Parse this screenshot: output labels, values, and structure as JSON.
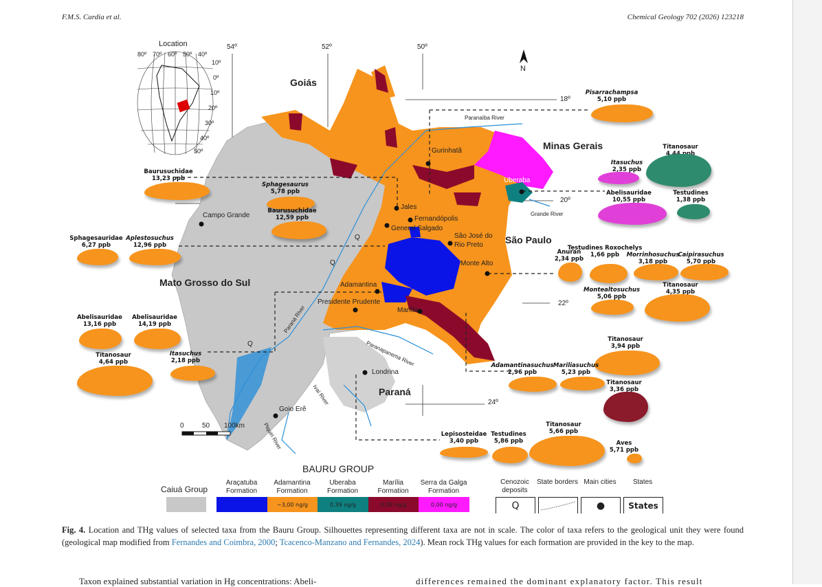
{
  "header": {
    "left": "F.M.S. Cardia et al.",
    "right": "Chemical Geology 702 (2026) 123218"
  },
  "inset": {
    "title": "Location",
    "lon_ticks": [
      "80º",
      "70º",
      "60º",
      "50º",
      "40º"
    ],
    "lat_ticks": [
      "10º",
      "0º",
      "10º",
      "20º",
      "30º",
      "40º",
      "50º"
    ]
  },
  "map": {
    "longitudes": [
      "54º",
      "52º",
      "50º"
    ],
    "latitudes": [
      "18º",
      "20º",
      "22º",
      "24º"
    ],
    "north": "N",
    "states": [
      "Goiás",
      "Minas Gerais",
      "São Paulo",
      "Mato Grosso do Sul",
      "Paraná"
    ],
    "cities": [
      "Gurinhatã",
      "Uberaba",
      "Jales",
      "Fernandópolis",
      "General Salgado",
      "São José do Rio Preto",
      "Monte Alto",
      "Adamantina",
      "Presidente Prudente",
      "Marília",
      "Londrina",
      "Campo Grande",
      "Goio Erê"
    ],
    "rivers": [
      "Paranaíba River",
      "Grande River",
      "Paraná River",
      "Paranapanema River",
      "Ivaí River",
      "Piquiri River"
    ],
    "q_marks": [
      "Q",
      "Q",
      "Q"
    ],
    "scale": {
      "labels": [
        "0",
        "50",
        "100km"
      ]
    }
  },
  "taxa": [
    {
      "name": "Pisarrachampsa",
      "value": "5,10 ppb",
      "italic": true,
      "color": "#f7941d"
    },
    {
      "name": "Titanosaur",
      "value": "4,44 ppb",
      "italic": false,
      "color": "#2e8b6e"
    },
    {
      "name": "Itasuchus",
      "value": "2,35  ppb",
      "italic": true,
      "color": "#e040d8"
    },
    {
      "name": "Abelisauridae",
      "value": "10,55 ppb",
      "italic": false,
      "color": "#e040d8"
    },
    {
      "name": "Testudines",
      "value": "1,38 ppb",
      "italic": false,
      "color": "#2e8b6e"
    },
    {
      "name": "Anuran",
      "value": "2,34 ppb",
      "italic": false,
      "color": "#f7941d"
    },
    {
      "name": "Testudines Roxochelys",
      "value": "1,66 ppb",
      "italic": false,
      "color": "#f7941d"
    },
    {
      "name": "Morrinhosuchus",
      "value": "3,18 ppb",
      "italic": true,
      "color": "#f7941d"
    },
    {
      "name": "Caipirasuchus",
      "value": "5,70 ppb",
      "italic": true,
      "color": "#f7941d"
    },
    {
      "name": "Montealtosuchus",
      "value": "5,06 ppb",
      "italic": true,
      "color": "#f7941d"
    },
    {
      "name": "Titanosaur",
      "value": "4,35 ppb",
      "italic": false,
      "color": "#f7941d"
    },
    {
      "name": "Titanosaur",
      "value": "3,94 ppb",
      "italic": false,
      "color": "#f7941d"
    },
    {
      "name": "Adamantinasuchus",
      "value": "2,96 ppb",
      "italic": true,
      "color": "#f7941d"
    },
    {
      "name": "Mariliasuchus",
      "value": "5,23 ppb",
      "italic": true,
      "color": "#f7941d"
    },
    {
      "name": "Titanosaur",
      "value": "3,36 ppb",
      "italic": false,
      "color": "#8b1a2b"
    },
    {
      "name": "Lepisosteidae",
      "value": "3,40 ppb",
      "italic": false,
      "color": "#f7941d"
    },
    {
      "name": "Testudines",
      "value": "5,86 ppb",
      "italic": false,
      "color": "#f7941d"
    },
    {
      "name": "Titanosaur",
      "value": "5,66 ppb",
      "italic": false,
      "color": "#f7941d"
    },
    {
      "name": "Aves",
      "value": "5,71 ppb",
      "italic": false,
      "color": "#f7941d"
    },
    {
      "name": "Baurusuchidae",
      "value": "13,23 ppb",
      "italic": false,
      "color": "#f7941d"
    },
    {
      "name": "Sphagesaurus",
      "value": "5,78 ppb",
      "italic": true,
      "color": "#f7941d"
    },
    {
      "name": "Baurusuchidae",
      "value": "12,59 ppb",
      "italic": false,
      "color": "#f7941d"
    },
    {
      "name": "Sphagesauridae",
      "value": "6,27 ppb",
      "italic": false,
      "color": "#f7941d"
    },
    {
      "name": "Aplestosuchus",
      "value": "12,96 ppb",
      "italic": true,
      "color": "#f7941d"
    },
    {
      "name": "Abelisauridae",
      "value": "13,16 ppb",
      "italic": false,
      "color": "#f7941d"
    },
    {
      "name": "Abelisauridae",
      "value": "14,19 ppb",
      "italic": false,
      "color": "#f7941d"
    },
    {
      "name": "Titanosaur",
      "value": "4,64 ppb",
      "italic": false,
      "color": "#f7941d"
    },
    {
      "name": "Itasuchus",
      "value": "2,18 ppb",
      "italic": true,
      "color": "#f7941d"
    }
  ],
  "legend": {
    "group_title": "BAURU GROUP",
    "caiua": {
      "label": "Caiuá Group",
      "color": "#c8c8c8"
    },
    "formations": [
      {
        "label": "Araçatuba Formation",
        "value": "",
        "color": "#0a14e6"
      },
      {
        "label": "Adamantina Formation",
        "value": "~3,00 ng/g",
        "color": "#f7941d"
      },
      {
        "label": "Uberaba Formation",
        "value": "0,39 ng/g",
        "color": "#0f8080"
      },
      {
        "label": "Marília Formation",
        "value": "0,00 ng/g",
        "color": "#8b0a2b"
      },
      {
        "label": "Serra da Galga Formation",
        "value": "0,00 ng/g",
        "color": "#ff1aff"
      }
    ],
    "symbols": [
      {
        "label": "Cenozoic deposits",
        "symbol": "Q"
      },
      {
        "label": "State borders",
        "symbol": "dotted-line"
      },
      {
        "label": "Main cities",
        "symbol": "●"
      },
      {
        "label": "States",
        "symbol": "States"
      }
    ]
  },
  "caption": {
    "fig": "Fig. 4.",
    "text1": " Location and THg values of selected taxa from the Bauru Group. Silhouettes representing different taxa are not in scale. The color of taxa refers to the geological unit they were found (geological map modified from ",
    "ref1": "Fernandes and Coimbra, 2000",
    "sep": "; ",
    "ref2": "Tcacenco-Manzano and Fernandes, 2024",
    "text2": "). Mean rock THg values for each formation are provided in the key to the map."
  },
  "body": {
    "left": "Taxon explained substantial variation in Hg concentrations: Abeli-",
    "right": "differences remained the dominant explanatory factor. This result"
  }
}
